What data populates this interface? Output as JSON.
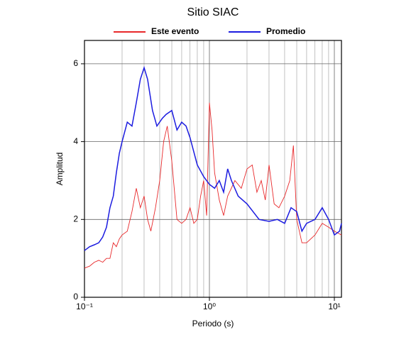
{
  "chart_data": {
    "type": "line",
    "title": "Sitio SIAC",
    "x_label": "Periodo (s)",
    "y_label": "Amplitud",
    "xscale": "log",
    "grid": true,
    "legend_position": "top",
    "xlim": [
      0.1,
      11.4
    ],
    "ylim": [
      0,
      6.6
    ],
    "xticks": [
      {
        "value": 0.1,
        "label": "10⁻¹"
      },
      {
        "value": 1,
        "label": "10⁰"
      },
      {
        "value": 10,
        "label": "10¹"
      }
    ],
    "yticks": [
      0,
      2,
      4,
      6
    ],
    "series": [
      {
        "name": "Este evento",
        "color": "#e8282a",
        "x": [
          0.1,
          0.11,
          0.12,
          0.13,
          0.14,
          0.15,
          0.16,
          0.17,
          0.18,
          0.19,
          0.2,
          0.22,
          0.24,
          0.26,
          0.28,
          0.3,
          0.32,
          0.34,
          0.37,
          0.4,
          0.43,
          0.46,
          0.5,
          0.55,
          0.6,
          0.65,
          0.7,
          0.75,
          0.8,
          0.85,
          0.9,
          0.95,
          1.0,
          1.05,
          1.1,
          1.2,
          1.3,
          1.4,
          1.6,
          1.8,
          2.0,
          2.2,
          2.4,
          2.6,
          2.8,
          3.0,
          3.3,
          3.6,
          4.0,
          4.4,
          4.7,
          5.0,
          5.5,
          6,
          7,
          8,
          9,
          10,
          11.4
        ],
        "values": [
          0.75,
          0.8,
          0.9,
          0.95,
          0.9,
          1.0,
          1.0,
          1.4,
          1.3,
          1.5,
          1.6,
          1.7,
          2.2,
          2.8,
          2.3,
          2.6,
          2.0,
          1.7,
          2.3,
          3.0,
          4.0,
          4.4,
          3.5,
          2.0,
          1.9,
          2.0,
          2.3,
          1.9,
          2.0,
          2.6,
          3.0,
          2.1,
          5.0,
          4.3,
          3.2,
          2.5,
          2.1,
          2.6,
          3.0,
          2.8,
          3.3,
          3.4,
          2.7,
          3.0,
          2.5,
          3.4,
          2.4,
          2.3,
          2.6,
          3.0,
          3.9,
          2.0,
          1.4,
          1.4,
          1.6,
          1.9,
          1.8,
          1.7,
          1.6
        ]
      },
      {
        "name": "Promedio",
        "color": "#1c1ce0",
        "x": [
          0.1,
          0.11,
          0.12,
          0.13,
          0.14,
          0.15,
          0.16,
          0.17,
          0.18,
          0.19,
          0.2,
          0.22,
          0.24,
          0.26,
          0.28,
          0.3,
          0.32,
          0.35,
          0.38,
          0.42,
          0.45,
          0.5,
          0.55,
          0.6,
          0.65,
          0.7,
          0.8,
          0.9,
          1.0,
          1.1,
          1.2,
          1.3,
          1.4,
          1.5,
          1.7,
          2.0,
          2.5,
          3.0,
          3.5,
          4.0,
          4.5,
          5.0,
          5.5,
          6,
          7,
          8,
          9,
          10,
          11,
          11.4
        ],
        "values": [
          1.2,
          1.3,
          1.35,
          1.4,
          1.55,
          1.8,
          2.3,
          2.6,
          3.2,
          3.7,
          4.0,
          4.5,
          4.4,
          5.0,
          5.6,
          5.9,
          5.6,
          4.8,
          4.4,
          4.6,
          4.7,
          4.8,
          4.3,
          4.5,
          4.4,
          4.1,
          3.4,
          3.1,
          2.9,
          2.8,
          3.0,
          2.7,
          3.3,
          3.0,
          2.6,
          2.4,
          2.0,
          1.95,
          2.0,
          1.9,
          2.3,
          2.2,
          1.7,
          1.9,
          2.0,
          2.3,
          2.0,
          1.6,
          1.7,
          1.9
        ]
      }
    ]
  }
}
